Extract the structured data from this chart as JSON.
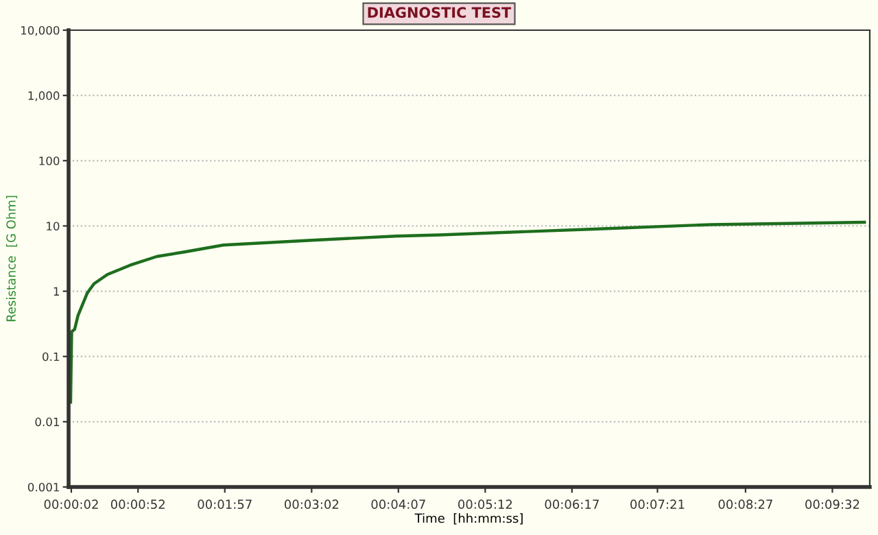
{
  "chart_data": {
    "type": "line",
    "title": "DIAGNOSTIC TEST",
    "xlabel": "Time  [hh:mm:ss]",
    "ylabel": "Resistance  [G Ohm]",
    "x": [
      0.00042,
      0.0005,
      0.00064,
      0.00125,
      0.00194,
      0.00389,
      0.00528,
      0.00806,
      0.01278,
      0.01833,
      0.02417,
      0.03222,
      0.05,
      0.06806,
      0.07722,
      0.10833,
      0.13361,
      0.16556
    ],
    "series": [
      {
        "color": "#1e6e1e",
        "values": [
          0.02,
          0.05,
          0.24,
          0.26,
          0.42,
          0.94,
          1.3,
          1.8,
          2.5,
          3.4,
          4.0,
          5.1,
          6.0,
          7.0,
          7.3,
          8.9,
          10.5,
          11.4
        ]
      }
    ],
    "log": "y",
    "ylim": [
      0.001,
      10000
    ],
    "yticks": [
      {
        "value": 0.001,
        "label": "0.001"
      },
      {
        "value": 0.01,
        "label": "0.01"
      },
      {
        "value": 0.1,
        "label": "0.1"
      },
      1,
      10,
      100,
      {
        "value": 1000,
        "label": "1,000"
      },
      {
        "value": 10000,
        "label": "10,000"
      }
    ],
    "xlim": [
      0,
      0.16667
    ],
    "xticks": [
      {
        "value": 0.00056,
        "label": "00:00:02"
      },
      {
        "value": 0.01444,
        "label": "00:00:52"
      },
      {
        "value": 0.0325,
        "label": "00:01:57"
      },
      {
        "value": 0.05056,
        "label": "00:03:02"
      },
      {
        "value": 0.06861,
        "label": "00:04:07"
      },
      {
        "value": 0.08667,
        "label": "00:05:12"
      },
      {
        "value": 0.10472,
        "label": "00:06:17"
      },
      {
        "value": 0.1225,
        "label": "00:07:21"
      },
      {
        "value": 0.14083,
        "label": "00:08:27"
      },
      {
        "value": 0.15889,
        "label": "00:09:32"
      }
    ],
    "grid": "y",
    "line_style": "solid",
    "marker": "none"
  }
}
